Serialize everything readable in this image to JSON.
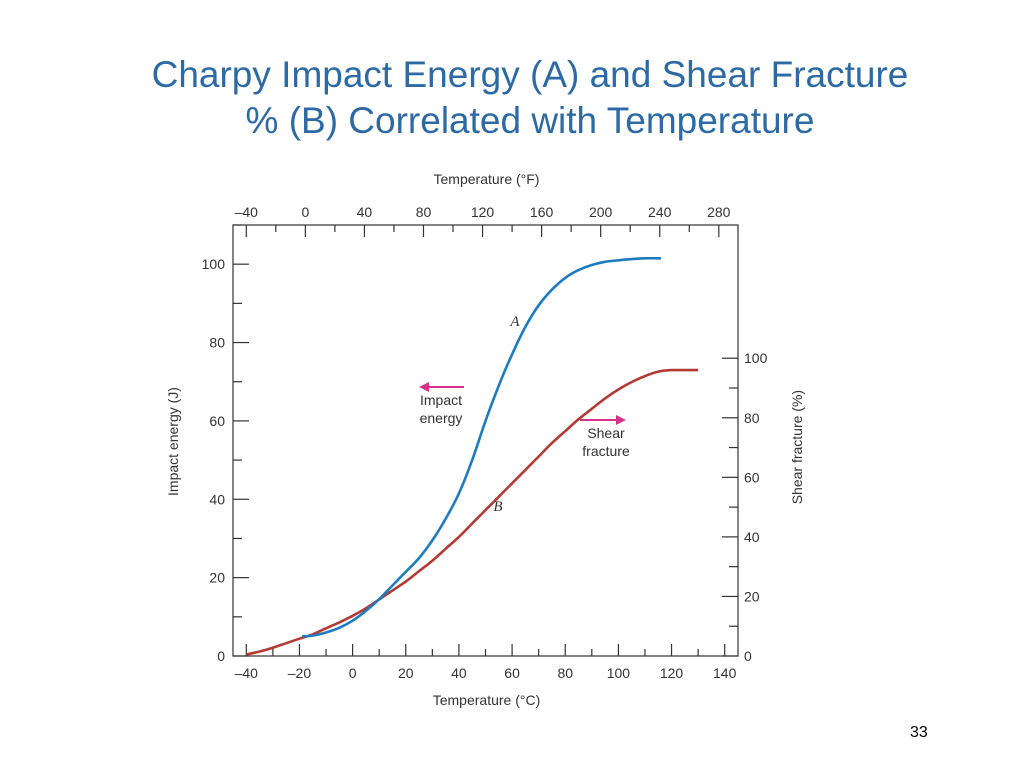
{
  "slide": {
    "title_line1": "Charpy Impact Energy (A) and Shear Fracture",
    "title_line2": "% (B) Correlated with Temperature",
    "page_number": "33"
  },
  "colors": {
    "title": "#2d6aa3",
    "curve_a": "#1f7bbf",
    "curve_b": "#b23a34",
    "arrow": "#d9308a",
    "axis": "#333333"
  },
  "chart_data": {
    "type": "line",
    "xlabel_bottom": "Temperature (°C)",
    "xlabel_top": "Temperature (°F)",
    "ylabel_left": "Impact energy (J)",
    "ylabel_right": "Shear fracture (%)",
    "xlim": [
      -45,
      145
    ],
    "ylim_left": [
      0,
      110
    ],
    "ylim_right": [
      0,
      100
    ],
    "right_axis_top_in_left_units": 76,
    "x_ticks": [
      "–40",
      "–20",
      "0",
      "20",
      "40",
      "60",
      "80",
      "100",
      "120",
      "140"
    ],
    "x_ticks_top": [
      "–40",
      "0",
      "40",
      "80",
      "120",
      "160",
      "200",
      "240",
      "280"
    ],
    "y_ticks_left": [
      "0",
      "20",
      "40",
      "60",
      "80",
      "100"
    ],
    "y_ticks_right": [
      "0",
      "20",
      "40",
      "60",
      "80",
      "100"
    ],
    "grid": false,
    "series": [
      {
        "name": "A",
        "axis": "left",
        "x": [
          -19,
          -15,
          -10,
          -5,
          0,
          5,
          10,
          15,
          20,
          25,
          30,
          35,
          40,
          45,
          50,
          55,
          60,
          65,
          70,
          75,
          80,
          85,
          90,
          95,
          100,
          105,
          110,
          116
        ],
        "y": [
          5,
          5.2,
          6,
          7.2,
          9,
          11.5,
          14.5,
          18,
          21.5,
          25,
          29.5,
          35,
          41.5,
          50,
          60,
          69,
          77,
          84,
          89.5,
          93.5,
          96.5,
          98.5,
          99.8,
          100.6,
          101,
          101.3,
          101.5,
          101.5
        ]
      },
      {
        "name": "B",
        "axis": "right",
        "x": [
          -40,
          -35,
          -30,
          -25,
          -20,
          -15,
          -10,
          -5,
          0,
          5,
          10,
          15,
          20,
          25,
          30,
          35,
          40,
          45,
          50,
          55,
          60,
          65,
          70,
          75,
          80,
          85,
          90,
          95,
          100,
          105,
          110,
          115,
          120,
          130
        ],
        "y": [
          0.5,
          1.5,
          2.8,
          4.3,
          5.8,
          7.3,
          9.3,
          11.3,
          13.5,
          16,
          19,
          22,
          25,
          28.5,
          32,
          36,
          40,
          44.5,
          49,
          53.5,
          58,
          62.5,
          67,
          71.5,
          75.5,
          79.5,
          83,
          86.5,
          89.5,
          92,
          94,
          95.5,
          96,
          96
        ]
      }
    ],
    "annotations": [
      {
        "text_line1": "Impact",
        "text_line2": "energy",
        "arrow": "left"
      },
      {
        "text_line1": "Shear",
        "text_line2": "fracture",
        "arrow": "right"
      }
    ]
  }
}
